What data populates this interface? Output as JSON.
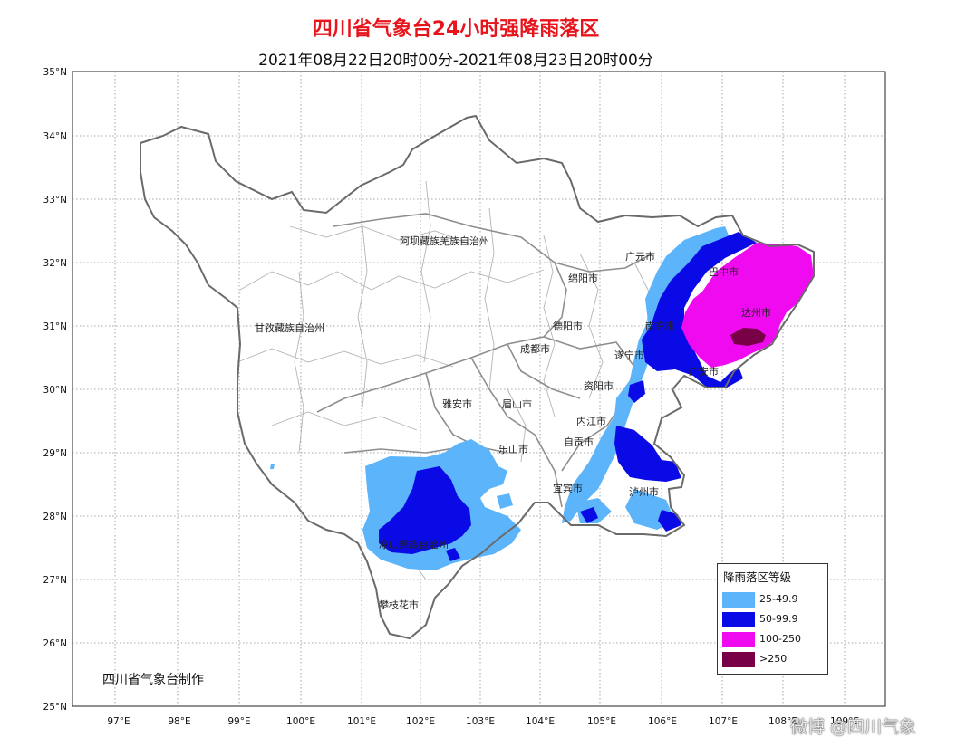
{
  "title": "四川省气象台24小时强降雨落区",
  "subtitle": "2021年08月22日20时00分-2021年08月23日20时00分",
  "y_axis_labels": [
    "35°N",
    "34°N",
    "33°N",
    "32°N",
    "31°N",
    "30°N",
    "29°N",
    "28°N",
    "27°N",
    "26°N",
    "25°N"
  ],
  "x_axis_labels": [
    "97°E",
    "98°E",
    "99°E",
    "100°E",
    "101°E",
    "102°E",
    "103°E",
    "104°E",
    "105°E",
    "106°E",
    "107°E",
    "108°E",
    "109°E"
  ],
  "place_labels": {
    "aba": "阿坝藏族羌族自治州",
    "ganzi": "甘孜藏族自治州",
    "guangyuan": "广元市",
    "mianyang": "绵阳市",
    "bazhong": "巴中市",
    "dazhou": "达州市",
    "deyang": "德阳市",
    "chengdu": "成都市",
    "nanchong": "南充市",
    "suining": "遂宁市",
    "guangan": "广安市",
    "ziyang": "资阳市",
    "yaan": "雅安市",
    "meishan": "眉山市",
    "neijiang": "内江市",
    "zigong": "自贡市",
    "leshan": "乐山市",
    "yibin": "宜宾市",
    "luzhou": "泸州市",
    "liangshan": "凉山彝族自治州",
    "panzhihua": "攀枝花市"
  },
  "legend": {
    "title": "降雨落区等级",
    "items": [
      {
        "label": "25-49.9",
        "color": "#5cb4fa"
      },
      {
        "label": "50-99.9",
        "color": "#0a0ae6"
      },
      {
        "label": "100-250",
        "color": "#f00af0"
      },
      {
        "label": ">250",
        "color": "#780046"
      }
    ]
  },
  "credit": "四川省气象台制作",
  "watermark": "微博 @四川气象",
  "colors": {
    "title": "#e8141c",
    "boundary": "#555555",
    "grid": "#9a9a9a"
  }
}
